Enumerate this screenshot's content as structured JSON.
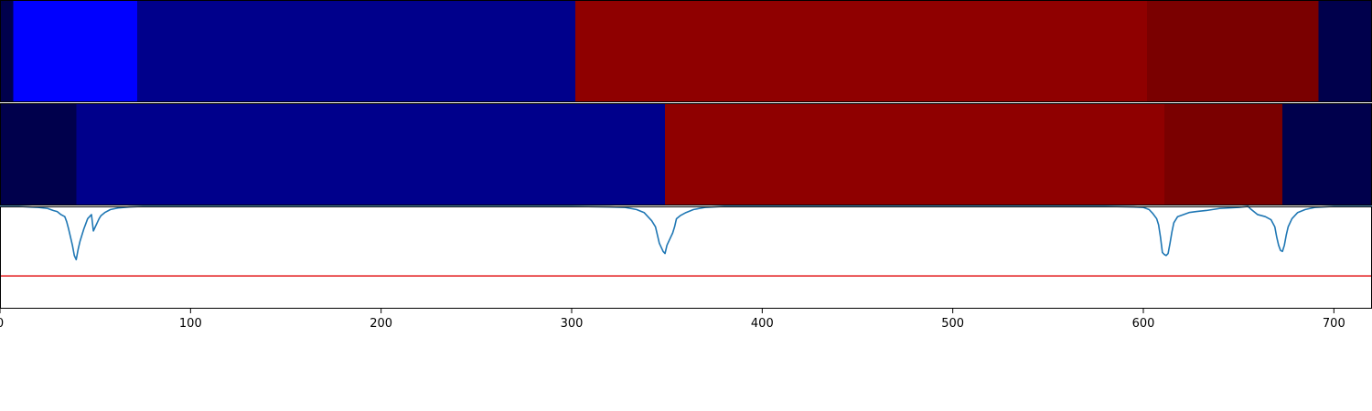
{
  "chart_data": {
    "type": "heatmap",
    "title": "",
    "xlabel": "",
    "ylabel": "",
    "xlim": [
      0,
      720
    ],
    "x_ticks": [
      0,
      100,
      200,
      300,
      400,
      500,
      600,
      700
    ],
    "x_tick_labels": [
      "0",
      "100",
      "200",
      "300",
      "400",
      "500",
      "600",
      "700"
    ],
    "grid": false,
    "segment_rows": [
      {
        "segments": [
          {
            "start": 0,
            "end": 7,
            "color": "#00004c"
          },
          {
            "start": 7,
            "end": 72,
            "color": "#0000ff"
          },
          {
            "start": 72,
            "end": 302,
            "color": "#00008b"
          },
          {
            "start": 302,
            "end": 602,
            "color": "#8f0000"
          },
          {
            "start": 602,
            "end": 692,
            "color": "#7a0000"
          },
          {
            "start": 692,
            "end": 720,
            "color": "#00004c"
          }
        ]
      },
      {
        "segments": [
          {
            "start": 0,
            "end": 40,
            "color": "#00004c"
          },
          {
            "start": 40,
            "end": 349,
            "color": "#00008b"
          },
          {
            "start": 349,
            "end": 611,
            "color": "#8f0000"
          },
          {
            "start": 611,
            "end": 673,
            "color": "#7a0000"
          },
          {
            "start": 673,
            "end": 720,
            "color": "#00004c"
          }
        ]
      }
    ],
    "line_panel": {
      "ylim": [
        -1.0,
        0.0
      ],
      "threshold": -0.68,
      "threshold_color": "#e31a1c",
      "line_color": "#1f77b4",
      "points": [
        [
          0,
          0.0
        ],
        [
          10,
          0.0
        ],
        [
          15,
          -0.005
        ],
        [
          20,
          -0.01
        ],
        [
          25,
          -0.02
        ],
        [
          28,
          -0.04
        ],
        [
          30,
          -0.05
        ],
        [
          32,
          -0.08
        ],
        [
          33,
          -0.09
        ],
        [
          34,
          -0.1
        ],
        [
          35,
          -0.15
        ],
        [
          36,
          -0.22
        ],
        [
          37,
          -0.3
        ],
        [
          38,
          -0.38
        ],
        [
          39,
          -0.48
        ],
        [
          40,
          -0.52
        ],
        [
          41,
          -0.42
        ],
        [
          42,
          -0.34
        ],
        [
          43,
          -0.28
        ],
        [
          44,
          -0.22
        ],
        [
          45,
          -0.17
        ],
        [
          46,
          -0.12
        ],
        [
          47,
          -0.1
        ],
        [
          48,
          -0.08
        ],
        [
          49,
          -0.24
        ],
        [
          50,
          -0.2
        ],
        [
          51,
          -0.16
        ],
        [
          52,
          -0.12
        ],
        [
          53,
          -0.09
        ],
        [
          55,
          -0.06
        ],
        [
          58,
          -0.03
        ],
        [
          62,
          -0.015
        ],
        [
          68,
          -0.005
        ],
        [
          75,
          0.0
        ],
        [
          300,
          0.0
        ],
        [
          320,
          -0.005
        ],
        [
          328,
          -0.01
        ],
        [
          334,
          -0.03
        ],
        [
          338,
          -0.06
        ],
        [
          340,
          -0.1
        ],
        [
          342,
          -0.14
        ],
        [
          344,
          -0.2
        ],
        [
          345,
          -0.28
        ],
        [
          346,
          -0.36
        ],
        [
          347,
          -0.4
        ],
        [
          348,
          -0.44
        ],
        [
          349,
          -0.46
        ],
        [
          350,
          -0.38
        ],
        [
          351,
          -0.34
        ],
        [
          352,
          -0.3
        ],
        [
          353,
          -0.26
        ],
        [
          354,
          -0.2
        ],
        [
          355,
          -0.12
        ],
        [
          357,
          -0.09
        ],
        [
          360,
          -0.06
        ],
        [
          364,
          -0.03
        ],
        [
          370,
          -0.01
        ],
        [
          380,
          0.0
        ],
        [
          580,
          0.0
        ],
        [
          595,
          -0.005
        ],
        [
          600,
          -0.01
        ],
        [
          603,
          -0.03
        ],
        [
          605,
          -0.07
        ],
        [
          607,
          -0.12
        ],
        [
          608,
          -0.18
        ],
        [
          609,
          -0.3
        ],
        [
          610,
          -0.45
        ],
        [
          611,
          -0.47
        ],
        [
          612,
          -0.48
        ],
        [
          613,
          -0.46
        ],
        [
          614,
          -0.36
        ],
        [
          615,
          -0.25
        ],
        [
          616,
          -0.16
        ],
        [
          618,
          -0.1
        ],
        [
          621,
          -0.08
        ],
        [
          624,
          -0.06
        ],
        [
          628,
          -0.05
        ],
        [
          633,
          -0.04
        ],
        [
          640,
          -0.02
        ],
        [
          650,
          -0.01
        ],
        [
          655,
          0.0
        ],
        [
          656,
          -0.02
        ],
        [
          660,
          -0.08
        ],
        [
          664,
          -0.1
        ],
        [
          667,
          -0.13
        ],
        [
          669,
          -0.2
        ],
        [
          670,
          -0.3
        ],
        [
          671,
          -0.38
        ],
        [
          672,
          -0.43
        ],
        [
          673,
          -0.44
        ],
        [
          674,
          -0.38
        ],
        [
          675,
          -0.28
        ],
        [
          676,
          -0.2
        ],
        [
          678,
          -0.12
        ],
        [
          681,
          -0.06
        ],
        [
          685,
          -0.03
        ],
        [
          690,
          -0.01
        ],
        [
          700,
          0.0
        ],
        [
          720,
          0.0
        ]
      ]
    }
  }
}
